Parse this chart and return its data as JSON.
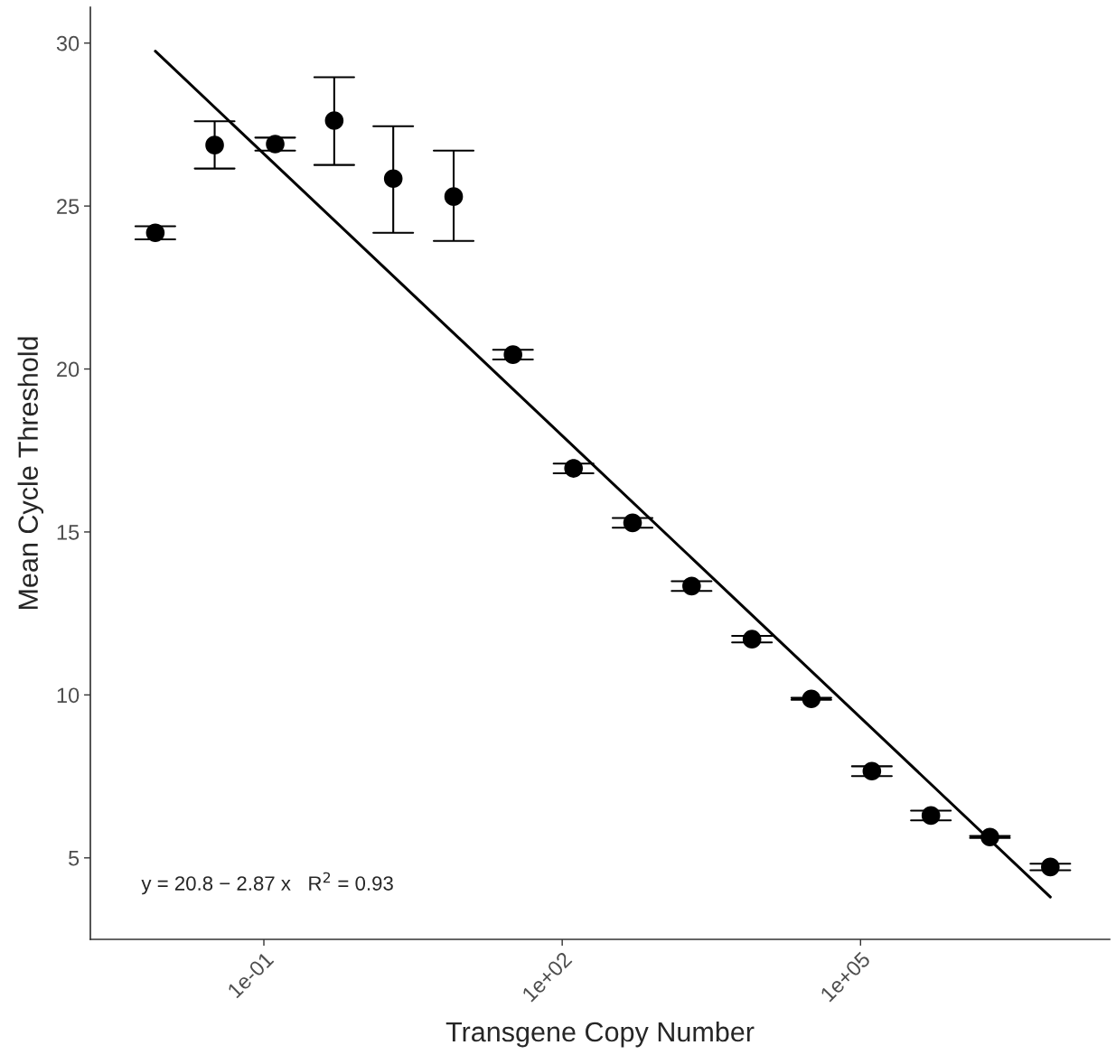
{
  "chart_data": {
    "type": "scatter",
    "xlabel": "Transgene Copy Number",
    "ylabel": "Mean Cycle Threshold",
    "log": "x",
    "xlim": [
      0.0018,
      32000000
    ],
    "xticks": [
      {
        "value": 0.1,
        "label": "1e-01"
      },
      {
        "value": 100,
        "label": "1e+02"
      },
      {
        "value": 100000,
        "label": "1e+05"
      }
    ],
    "ylim": [
      2.5,
      31.1
    ],
    "yticks": [
      5,
      10,
      15,
      20,
      25,
      30
    ],
    "grid": false,
    "legend": false,
    "series": [
      {
        "marker": "circle",
        "color": "#000000",
        "x": [
          0.0081,
          0.032,
          0.13,
          0.51,
          2.0,
          8.1,
          32,
          130,
          510,
          2000,
          8100,
          32000,
          130000,
          510000,
          2000000,
          8100000
        ],
        "values": [
          24.18,
          26.87,
          26.9,
          27.62,
          25.84,
          25.29,
          20.44,
          16.95,
          15.28,
          13.34,
          11.71,
          9.88,
          7.66,
          6.3,
          5.64,
          4.72
        ],
        "errors": [
          0.2,
          [
            26.15,
            27.6
          ],
          0.2,
          [
            26.26,
            28.95
          ],
          [
            24.18,
            27.45
          ],
          [
            23.93,
            26.7
          ],
          0.15,
          0.15,
          0.15,
          0.15,
          0.1,
          0.03,
          0.15,
          0.15,
          0.03,
          0.1
        ]
      },
      {
        "type": "line",
        "color": "#000000",
        "x": [
          0.0081,
          8100000
        ],
        "values": [
          29.75,
          3.8
        ],
        "line_style": "solid"
      }
    ],
    "annotations": [
      "y = 20.8 − 2.87 x   R$^{2}$ = 0.93"
    ]
  }
}
